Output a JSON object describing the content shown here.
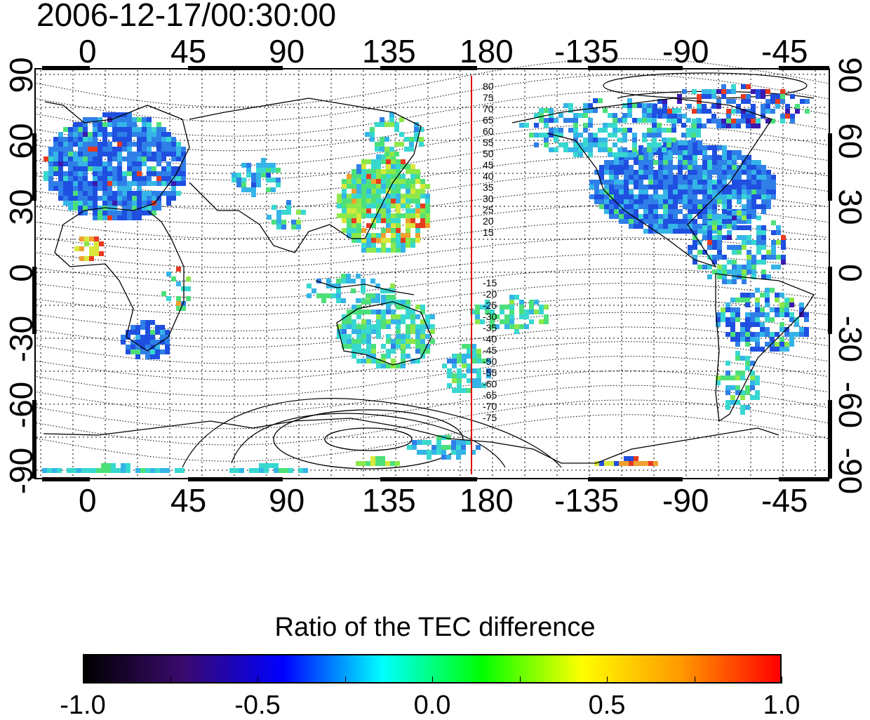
{
  "timestamp": "2006-12-17/00:30:00",
  "top_lon_ticks": [
    "0",
    "45",
    "90",
    "135",
    "180",
    "-135",
    "-90",
    "-45"
  ],
  "bottom_lon_ticks": [
    "0",
    "45",
    "90",
    "135",
    "180",
    "-135",
    "-90",
    "-45"
  ],
  "left_lat_ticks": [
    "90",
    "60",
    "30",
    "0",
    "-30",
    "-60",
    "-90"
  ],
  "right_lat_ticks": [
    "90",
    "60",
    "30",
    "0",
    "-30",
    "-60",
    "-90"
  ],
  "contour_labels_north": [
    "80",
    "75",
    "70",
    "65",
    "60",
    "55",
    "50",
    "45",
    "40",
    "35",
    "30",
    "25",
    "20",
    "15"
  ],
  "contour_labels_south": [
    "-15",
    "-20",
    "-25",
    "-30",
    "-35",
    "-40",
    "-45",
    "-50",
    "-55",
    "-60",
    "-65",
    "-70",
    "-75"
  ],
  "colorbar": {
    "title": "Ratio of the TEC difference",
    "tick_labels": [
      "-1.0",
      "-0.5",
      "0.0",
      "0.5",
      "1.0"
    ],
    "range": [
      -1.0,
      1.0
    ],
    "colors": [
      "#000000",
      "#3a0a6e",
      "#0000ff",
      "#00ffff",
      "#00ff00",
      "#ffff00",
      "#ff9900",
      "#ff0000"
    ]
  },
  "colors": {
    "terminator_line": "#e00000",
    "coastline": "#000000"
  }
}
